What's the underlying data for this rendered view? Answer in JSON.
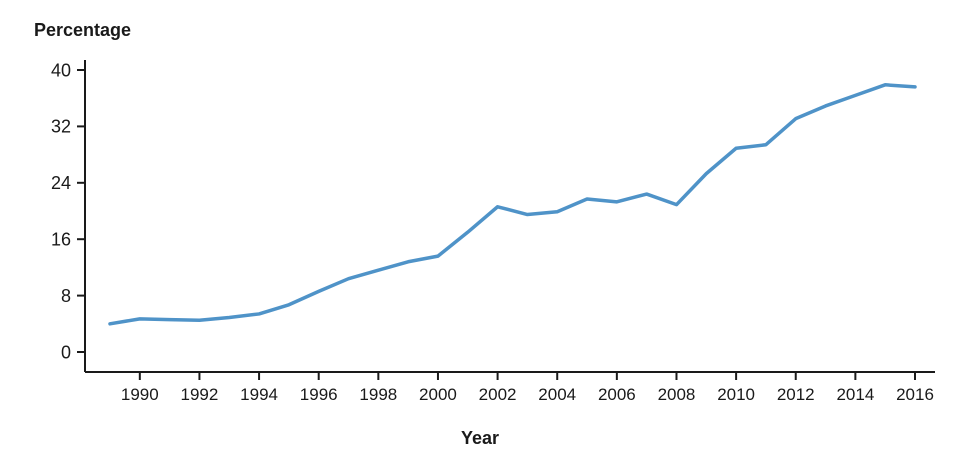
{
  "titles": {
    "y_axis_title": "Percentage",
    "x_axis_title": "Year"
  },
  "chart_data": {
    "type": "line",
    "title": "",
    "xlabel": "Year",
    "ylabel": "Percentage",
    "ylim": [
      0,
      40
    ],
    "yticks": [
      0,
      8,
      16,
      24,
      32,
      40
    ],
    "xticks": [
      1990,
      1992,
      1994,
      1996,
      1998,
      2000,
      2002,
      2004,
      2006,
      2008,
      2010,
      2012,
      2014,
      2016
    ],
    "xlim": [
      1989,
      2016
    ],
    "grid": false,
    "legend_position": "none",
    "axis_color": "#1a1a1a",
    "series": [
      {
        "name": "Percentage",
        "color": "#4f93c8",
        "x": [
          1989,
          1990,
          1991,
          1992,
          1993,
          1994,
          1995,
          1996,
          1997,
          1998,
          1999,
          2000,
          2001,
          2002,
          2003,
          2004,
          2005,
          2006,
          2007,
          2008,
          2009,
          2010,
          2011,
          2012,
          2013,
          2014,
          2015,
          2016
        ],
        "values": [
          4.0,
          4.7,
          4.6,
          4.5,
          4.9,
          5.4,
          6.7,
          8.6,
          10.4,
          11.6,
          12.8,
          13.6,
          17.0,
          20.6,
          19.5,
          19.9,
          21.7,
          21.3,
          22.4,
          20.9,
          25.3,
          28.9,
          29.4,
          33.1,
          34.9,
          36.4,
          37.9,
          37.6
        ]
      }
    ]
  }
}
